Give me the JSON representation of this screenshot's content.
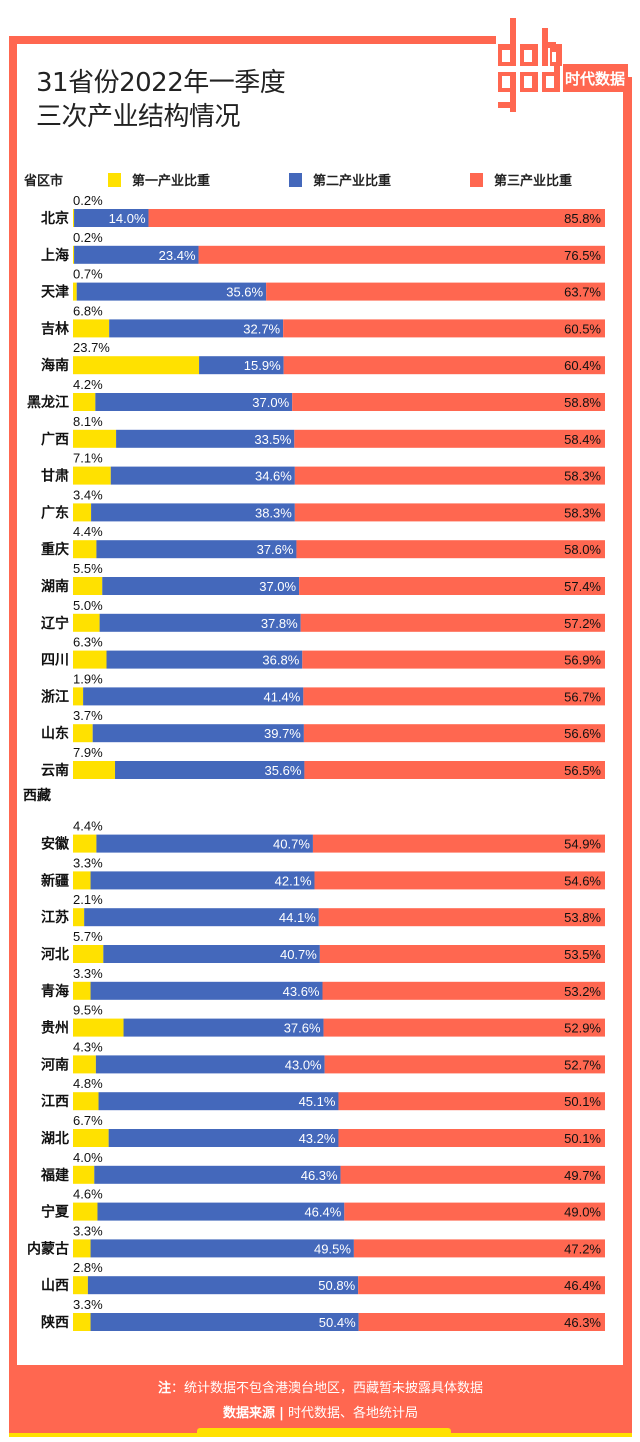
{
  "header": {
    "title_line1": "31省份2022年一季度",
    "title_line2": "三次产业结构情况",
    "logo_text_top": "data",
    "logo_text_bottom": "god",
    "logo_brand": "时代数据"
  },
  "colors": {
    "frame": "#ff6750",
    "primary": "#ffe100",
    "secondary": "#4468bb",
    "tertiary": "#ff6750",
    "footer_accent": "#ffe100"
  },
  "legend": {
    "category_header": "省区市",
    "items": [
      {
        "label": "第一产业比重",
        "color": "#ffe100"
      },
      {
        "label": "第二产业比重",
        "color": "#4468bb"
      },
      {
        "label": "第三产业比重",
        "color": "#ff6750"
      }
    ]
  },
  "footer": {
    "note_label": "注",
    "note_text": "：统计数据不包含港澳台地区，西藏暂未披露具体数据",
    "source_label": "数据来源",
    "source_sep": "|",
    "source_text": "时代数据、各地统计局"
  },
  "chart_data": {
    "type": "bar",
    "stacked": true,
    "orientation": "horizontal",
    "title": "31省份2022年一季度三次产业结构情况",
    "xlabel": "",
    "ylabel": "省区市",
    "xlim": [
      0,
      100
    ],
    "unit": "%",
    "legend_position": "top",
    "series": [
      {
        "name": "第一产业比重",
        "key": "primary"
      },
      {
        "name": "第二产业比重",
        "key": "secondary"
      },
      {
        "name": "第三产业比重",
        "key": "tertiary"
      }
    ],
    "rows": [
      {
        "region": "北京",
        "primary": 0.2,
        "secondary": 14.0,
        "tertiary": 85.8
      },
      {
        "region": "上海",
        "primary": 0.2,
        "secondary": 23.4,
        "tertiary": 76.5
      },
      {
        "region": "天津",
        "primary": 0.7,
        "secondary": 35.6,
        "tertiary": 63.7
      },
      {
        "region": "吉林",
        "primary": 6.8,
        "secondary": 32.7,
        "tertiary": 60.5
      },
      {
        "region": "海南",
        "primary": 23.7,
        "secondary": 15.9,
        "tertiary": 60.4
      },
      {
        "region": "黑龙江",
        "primary": 4.2,
        "secondary": 37.0,
        "tertiary": 58.8
      },
      {
        "region": "广西",
        "primary": 8.1,
        "secondary": 33.5,
        "tertiary": 58.4
      },
      {
        "region": "甘肃",
        "primary": 7.1,
        "secondary": 34.6,
        "tertiary": 58.3
      },
      {
        "region": "广东",
        "primary": 3.4,
        "secondary": 38.3,
        "tertiary": 58.3
      },
      {
        "region": "重庆",
        "primary": 4.4,
        "secondary": 37.6,
        "tertiary": 58.0
      },
      {
        "region": "湖南",
        "primary": 5.5,
        "secondary": 37.0,
        "tertiary": 57.4
      },
      {
        "region": "辽宁",
        "primary": 5.0,
        "secondary": 37.8,
        "tertiary": 57.2
      },
      {
        "region": "四川",
        "primary": 6.3,
        "secondary": 36.8,
        "tertiary": 56.9
      },
      {
        "region": "浙江",
        "primary": 1.9,
        "secondary": 41.4,
        "tertiary": 56.7
      },
      {
        "region": "山东",
        "primary": 3.7,
        "secondary": 39.7,
        "tertiary": 56.6
      },
      {
        "region": "云南",
        "primary": 7.9,
        "secondary": 35.6,
        "tertiary": 56.5
      },
      {
        "region": "西藏",
        "primary": null,
        "secondary": null,
        "tertiary": null
      },
      {
        "region": "安徽",
        "primary": 4.4,
        "secondary": 40.7,
        "tertiary": 54.9
      },
      {
        "region": "新疆",
        "primary": 3.3,
        "secondary": 42.1,
        "tertiary": 54.6
      },
      {
        "region": "江苏",
        "primary": 2.1,
        "secondary": 44.1,
        "tertiary": 53.8
      },
      {
        "region": "河北",
        "primary": 5.7,
        "secondary": 40.7,
        "tertiary": 53.5
      },
      {
        "region": "青海",
        "primary": 3.3,
        "secondary": 43.6,
        "tertiary": 53.2
      },
      {
        "region": "贵州",
        "primary": 9.5,
        "secondary": 37.6,
        "tertiary": 52.9
      },
      {
        "region": "河南",
        "primary": 4.3,
        "secondary": 43.0,
        "tertiary": 52.7
      },
      {
        "region": "江西",
        "primary": 4.8,
        "secondary": 45.1,
        "tertiary": 50.1
      },
      {
        "region": "湖北",
        "primary": 6.7,
        "secondary": 43.2,
        "tertiary": 50.1
      },
      {
        "region": "福建",
        "primary": 4.0,
        "secondary": 46.3,
        "tertiary": 49.7
      },
      {
        "region": "宁夏",
        "primary": 4.6,
        "secondary": 46.4,
        "tertiary": 49.0
      },
      {
        "region": "内蒙古",
        "primary": 3.3,
        "secondary": 49.5,
        "tertiary": 47.2
      },
      {
        "region": "山西",
        "primary": 2.8,
        "secondary": 50.8,
        "tertiary": 46.4
      },
      {
        "region": "陕西",
        "primary": 3.3,
        "secondary": 50.4,
        "tertiary": 46.3
      }
    ]
  }
}
